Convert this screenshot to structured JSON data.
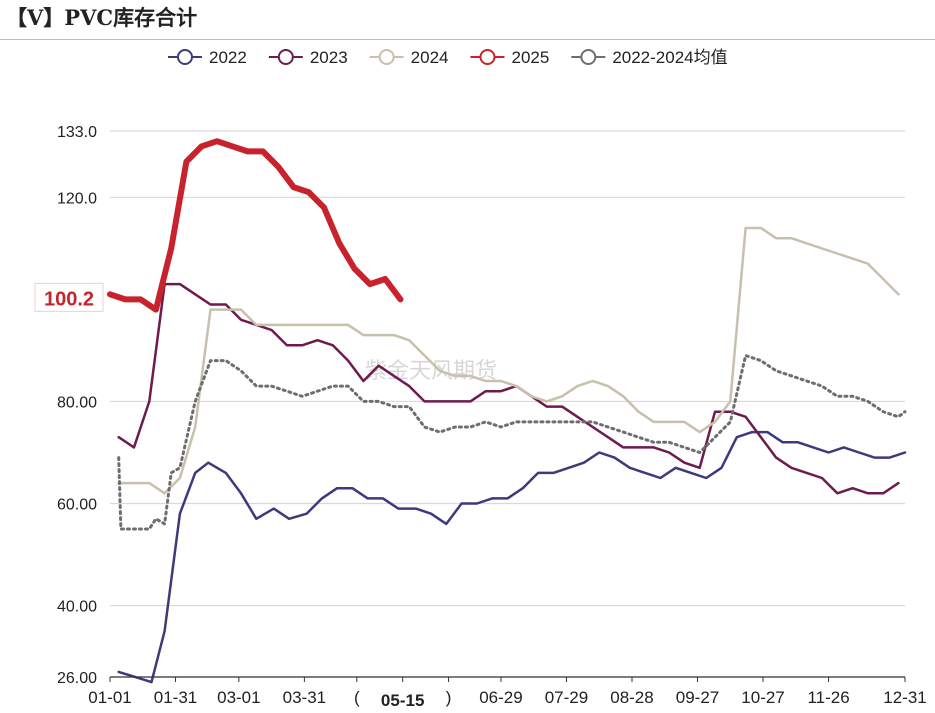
{
  "title": "【V】PVC库存合计",
  "watermark": "紫金天风期货",
  "chart_data": {
    "type": "line",
    "title": "【V】PVC库存合计",
    "xlabel": "",
    "ylabel": "",
    "x_ticks": [
      "01-01",
      "01-31",
      "03-01",
      "03-31",
      "(",
      "05-15",
      ")",
      "06-29",
      "07-29",
      "08-28",
      "09-27",
      "10-27",
      "11-26",
      "12-31"
    ],
    "x_tick_days": [
      0,
      30,
      59,
      89,
      113,
      134,
      155,
      179,
      209,
      239,
      269,
      299,
      329,
      364
    ],
    "highlight_tick": "05-15",
    "y_ticks": [
      "26.00",
      "40.00",
      "60.00",
      "80.00",
      "120.0",
      "133.0"
    ],
    "y_tick_values": [
      26,
      40,
      60,
      80,
      120,
      133
    ],
    "ylim": [
      26,
      133
    ],
    "xlim_days": [
      0,
      364
    ],
    "grid": true,
    "legend_position": "top",
    "marker_label": "100.2",
    "marker_value": 100.2,
    "series": [
      {
        "name": "2022",
        "color": "#3d3a7c",
        "width": 2.5,
        "dash": false,
        "points": [
          [
            4,
            27
          ],
          [
            19,
            25
          ],
          [
            25,
            35
          ],
          [
            32,
            58
          ],
          [
            39,
            66
          ],
          [
            45,
            68
          ],
          [
            53,
            66
          ],
          [
            60,
            62
          ],
          [
            67,
            57
          ],
          [
            75,
            59
          ],
          [
            82,
            57
          ],
          [
            90,
            58
          ],
          [
            97,
            61
          ],
          [
            104,
            63
          ],
          [
            111,
            63
          ],
          [
            118,
            61
          ],
          [
            125,
            61
          ],
          [
            132,
            59
          ],
          [
            140,
            59
          ],
          [
            147,
            58
          ],
          [
            154,
            56
          ],
          [
            161,
            60
          ],
          [
            168,
            60
          ],
          [
            175,
            61
          ],
          [
            182,
            61
          ],
          [
            189,
            63
          ],
          [
            196,
            66
          ],
          [
            203,
            66
          ],
          [
            210,
            67
          ],
          [
            217,
            68
          ],
          [
            224,
            70
          ],
          [
            231,
            69
          ],
          [
            238,
            67
          ],
          [
            245,
            66
          ],
          [
            252,
            65
          ],
          [
            259,
            67
          ],
          [
            266,
            66
          ],
          [
            273,
            65
          ],
          [
            280,
            67
          ],
          [
            287,
            73
          ],
          [
            294,
            74
          ],
          [
            301,
            74
          ],
          [
            308,
            72
          ],
          [
            315,
            72
          ],
          [
            322,
            71
          ],
          [
            329,
            70
          ],
          [
            336,
            71
          ],
          [
            343,
            70
          ],
          [
            350,
            69
          ],
          [
            357,
            69
          ],
          [
            364,
            70
          ]
        ]
      },
      {
        "name": "2023",
        "color": "#6e1a4f",
        "width": 2.5,
        "dash": false,
        "points": [
          [
            4,
            73
          ],
          [
            11,
            71
          ],
          [
            18,
            80
          ],
          [
            25,
            103
          ],
          [
            32,
            103
          ],
          [
            39,
            101
          ],
          [
            46,
            99
          ],
          [
            53,
            99
          ],
          [
            60,
            96
          ],
          [
            67,
            95
          ],
          [
            74,
            94
          ],
          [
            81,
            91
          ],
          [
            88,
            91
          ],
          [
            95,
            92
          ],
          [
            102,
            91
          ],
          [
            109,
            88
          ],
          [
            116,
            84
          ],
          [
            123,
            87
          ],
          [
            130,
            85
          ],
          [
            137,
            83
          ],
          [
            144,
            80
          ],
          [
            151,
            80
          ],
          [
            158,
            80
          ],
          [
            165,
            80
          ],
          [
            172,
            82
          ],
          [
            179,
            82
          ],
          [
            186,
            83
          ],
          [
            193,
            81
          ],
          [
            200,
            79
          ],
          [
            207,
            79
          ],
          [
            214,
            77
          ],
          [
            221,
            75
          ],
          [
            228,
            73
          ],
          [
            235,
            71
          ],
          [
            242,
            71
          ],
          [
            249,
            71
          ],
          [
            256,
            70
          ],
          [
            263,
            68
          ],
          [
            270,
            67
          ],
          [
            277,
            78
          ],
          [
            284,
            78
          ],
          [
            291,
            77
          ],
          [
            298,
            73
          ],
          [
            305,
            69
          ],
          [
            312,
            67
          ],
          [
            319,
            66
          ],
          [
            326,
            65
          ],
          [
            333,
            62
          ],
          [
            340,
            63
          ],
          [
            347,
            62
          ],
          [
            354,
            62
          ],
          [
            361,
            64
          ]
        ]
      },
      {
        "name": "2024",
        "color": "#c7c0ac",
        "width": 2.5,
        "dash": false,
        "points": [
          [
            4,
            64
          ],
          [
            11,
            64
          ],
          [
            18,
            64
          ],
          [
            25,
            62
          ],
          [
            32,
            65
          ],
          [
            39,
            75
          ],
          [
            46,
            98
          ],
          [
            53,
            98
          ],
          [
            60,
            98
          ],
          [
            67,
            95
          ],
          [
            74,
            95
          ],
          [
            81,
            95
          ],
          [
            88,
            95
          ],
          [
            95,
            95
          ],
          [
            102,
            95
          ],
          [
            109,
            95
          ],
          [
            116,
            93
          ],
          [
            123,
            93
          ],
          [
            130,
            93
          ],
          [
            137,
            92
          ],
          [
            144,
            89
          ],
          [
            151,
            86
          ],
          [
            158,
            85
          ],
          [
            165,
            85
          ],
          [
            172,
            84
          ],
          [
            179,
            84
          ],
          [
            186,
            83
          ],
          [
            193,
            81
          ],
          [
            200,
            80
          ],
          [
            207,
            81
          ],
          [
            214,
            83
          ],
          [
            221,
            84
          ],
          [
            228,
            83
          ],
          [
            235,
            81
          ],
          [
            242,
            78
          ],
          [
            249,
            76
          ],
          [
            256,
            76
          ],
          [
            263,
            76
          ],
          [
            270,
            74
          ],
          [
            277,
            76
          ],
          [
            284,
            80
          ],
          [
            291,
            114
          ],
          [
            298,
            114
          ],
          [
            305,
            112
          ],
          [
            312,
            112
          ],
          [
            319,
            111
          ],
          [
            326,
            110
          ],
          [
            333,
            109
          ],
          [
            340,
            108
          ],
          [
            347,
            107
          ],
          [
            354,
            104
          ],
          [
            361,
            101
          ]
        ]
      },
      {
        "name": "2025",
        "color": "#c8232c",
        "width": 6,
        "dash": false,
        "points": [
          [
            0,
            101
          ],
          [
            7,
            100
          ],
          [
            14,
            100
          ],
          [
            21,
            98
          ],
          [
            28,
            110
          ],
          [
            35,
            127
          ],
          [
            42,
            130
          ],
          [
            49,
            131
          ],
          [
            56,
            130
          ],
          [
            63,
            129
          ],
          [
            70,
            129
          ],
          [
            77,
            126
          ],
          [
            84,
            122
          ],
          [
            91,
            121
          ],
          [
            98,
            118
          ],
          [
            105,
            111
          ],
          [
            112,
            106
          ],
          [
            119,
            103
          ],
          [
            126,
            104
          ],
          [
            133,
            100
          ]
        ]
      },
      {
        "name": "2022-2024均值",
        "color": "#6e6e6e",
        "width": 3,
        "dash": true,
        "points": [
          [
            4,
            69
          ],
          [
            5,
            55
          ],
          [
            11,
            55
          ],
          [
            18,
            55
          ],
          [
            21,
            57
          ],
          [
            25,
            56
          ],
          [
            28,
            66
          ],
          [
            32,
            67
          ],
          [
            39,
            80
          ],
          [
            46,
            88
          ],
          [
            53,
            88
          ],
          [
            60,
            86
          ],
          [
            67,
            83
          ],
          [
            74,
            83
          ],
          [
            81,
            82
          ],
          [
            88,
            81
          ],
          [
            95,
            82
          ],
          [
            102,
            83
          ],
          [
            109,
            83
          ],
          [
            116,
            80
          ],
          [
            123,
            80
          ],
          [
            130,
            79
          ],
          [
            137,
            79
          ],
          [
            144,
            75
          ],
          [
            151,
            74
          ],
          [
            158,
            75
          ],
          [
            165,
            75
          ],
          [
            172,
            76
          ],
          [
            179,
            75
          ],
          [
            186,
            76
          ],
          [
            193,
            76
          ],
          [
            200,
            76
          ],
          [
            207,
            76
          ],
          [
            214,
            76
          ],
          [
            221,
            76
          ],
          [
            228,
            75
          ],
          [
            235,
            74
          ],
          [
            242,
            73
          ],
          [
            249,
            72
          ],
          [
            256,
            72
          ],
          [
            263,
            71
          ],
          [
            270,
            70
          ],
          [
            277,
            73
          ],
          [
            284,
            76
          ],
          [
            291,
            89
          ],
          [
            298,
            88
          ],
          [
            305,
            86
          ],
          [
            312,
            85
          ],
          [
            319,
            84
          ],
          [
            326,
            83
          ],
          [
            333,
            81
          ],
          [
            340,
            81
          ],
          [
            347,
            80
          ],
          [
            354,
            78
          ],
          [
            361,
            77
          ],
          [
            364,
            78
          ]
        ]
      }
    ]
  }
}
